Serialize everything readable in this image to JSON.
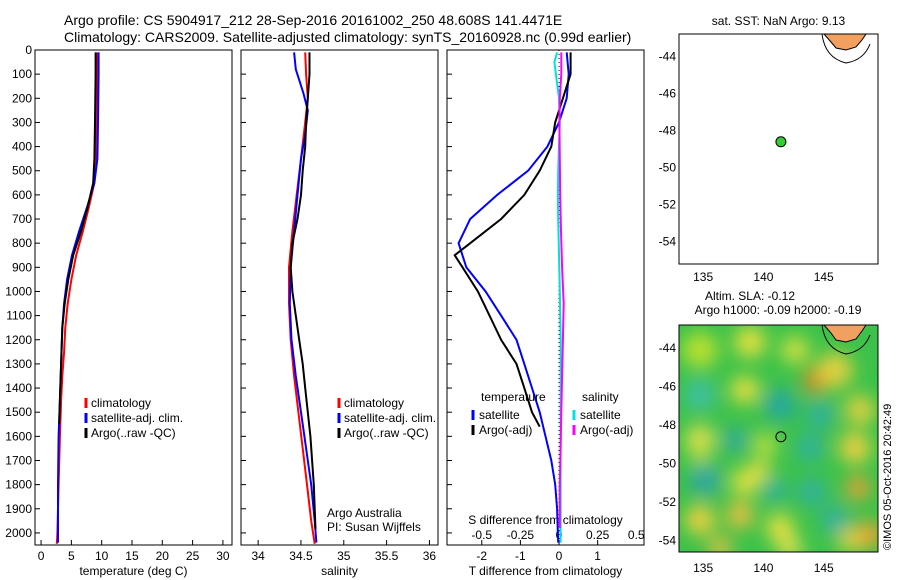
{
  "header": {
    "line1": "Argo profile: CS 5904917_212 28-Sep-2016 20161002_250 48.608S 141.4471E",
    "line2": "Climatology: CARS2009. Satellite-adjusted climatology: synTS_20160928.nc (0.99d earlier)"
  },
  "colors": {
    "climatology": "#ff0000",
    "satellite": "#0000ff",
    "argo": "#000000",
    "sat_salt": "#00e0e0",
    "argo_salt": "#ff00ff",
    "float_marker": "#33cc33"
  },
  "chart_data": [
    {
      "type": "line",
      "id": "temperature",
      "xlabel": "temperature (deg C)",
      "ylim": [
        2050,
        0
      ],
      "xlim": [
        -1,
        31.5
      ],
      "xticks": [
        0,
        5,
        10,
        15,
        20,
        25,
        30
      ],
      "yticks": [
        0,
        100,
        200,
        300,
        400,
        500,
        600,
        700,
        800,
        900,
        1000,
        1100,
        1200,
        1300,
        1400,
        1500,
        1600,
        1700,
        1800,
        1900,
        2000
      ],
      "legend": [
        "climatology",
        "satellite-adj. clim.",
        "Argo(..raw -QC)"
      ],
      "series": [
        {
          "name": "climatology",
          "color": "#ff0000",
          "points": [
            [
              9.3,
              10
            ],
            [
              9.2,
              100
            ],
            [
              9.1,
              300
            ],
            [
              9.0,
              450
            ],
            [
              8.8,
              550
            ],
            [
              7.9,
              650
            ],
            [
              6.9,
              750
            ],
            [
              5.8,
              850
            ],
            [
              5.0,
              950
            ],
            [
              4.4,
              1050
            ],
            [
              4.0,
              1150
            ],
            [
              3.8,
              1250
            ],
            [
              3.5,
              1350
            ],
            [
              3.3,
              1450
            ],
            [
              3.1,
              1600
            ],
            [
              2.9,
              1800
            ],
            [
              2.7,
              2000
            ],
            [
              2.6,
              2045
            ]
          ]
        },
        {
          "name": "satellite-adj. clim.",
          "color": "#0000ff",
          "points": [
            [
              9.5,
              10
            ],
            [
              9.5,
              100
            ],
            [
              9.4,
              300
            ],
            [
              9.3,
              450
            ],
            [
              8.8,
              550
            ],
            [
              7.6,
              650
            ],
            [
              6.3,
              750
            ],
            [
              5.1,
              850
            ],
            [
              4.3,
              950
            ],
            [
              3.8,
              1050
            ],
            [
              3.5,
              1150
            ],
            [
              3.3,
              1300
            ],
            [
              3.1,
              1450
            ],
            [
              2.9,
              1600
            ],
            [
              2.8,
              1800
            ],
            [
              2.8,
              2000
            ],
            [
              2.8,
              2040
            ]
          ]
        },
        {
          "name": "Argo(..raw -QC)",
          "color": "#000000",
          "points": [
            [
              9.0,
              10
            ],
            [
              9.0,
              100
            ],
            [
              8.9,
              300
            ],
            [
              8.8,
              450
            ],
            [
              8.6,
              550
            ],
            [
              7.7,
              650
            ],
            [
              6.6,
              750
            ],
            [
              5.3,
              850
            ],
            [
              4.5,
              950
            ],
            [
              3.9,
              1050
            ],
            [
              3.5,
              1150
            ],
            [
              3.3,
              1300
            ],
            [
              3.1,
              1450
            ],
            [
              3.0,
              1550
            ]
          ]
        }
      ]
    },
    {
      "type": "line",
      "id": "salinity",
      "xlabel": "salinity",
      "ylim": [
        2050,
        0
      ],
      "xlim": [
        33.8,
        36.1
      ],
      "xticks": [
        34,
        34.5,
        35,
        35.5,
        36
      ],
      "legend": [
        "climatology",
        "satellite-adj. clim.",
        "Argo(..raw -QC)"
      ],
      "annotations": [
        "Argo Australia",
        "PI: Susan Wijffels"
      ],
      "series": [
        {
          "name": "climatology",
          "color": "#ff0000",
          "points": [
            [
              34.55,
              10
            ],
            [
              34.56,
              100
            ],
            [
              34.58,
              200
            ],
            [
              34.55,
              300
            ],
            [
              34.5,
              450
            ],
            [
              34.45,
              600
            ],
            [
              34.4,
              750
            ],
            [
              34.36,
              900
            ],
            [
              34.36,
              1050
            ],
            [
              34.38,
              1200
            ],
            [
              34.42,
              1350
            ],
            [
              34.47,
              1500
            ],
            [
              34.52,
              1650
            ],
            [
              34.57,
              1800
            ],
            [
              34.62,
              1950
            ],
            [
              34.66,
              2045
            ]
          ]
        },
        {
          "name": "satellite-adj. clim.",
          "color": "#0000ff",
          "points": [
            [
              34.42,
              10
            ],
            [
              34.44,
              80
            ],
            [
              34.53,
              180
            ],
            [
              34.58,
              250
            ],
            [
              34.55,
              350
            ],
            [
              34.5,
              450
            ],
            [
              34.46,
              600
            ],
            [
              34.42,
              750
            ],
            [
              34.38,
              900
            ],
            [
              34.37,
              1050
            ],
            [
              34.39,
              1200
            ],
            [
              34.44,
              1350
            ],
            [
              34.5,
              1500
            ],
            [
              34.56,
              1650
            ],
            [
              34.62,
              1800
            ],
            [
              34.66,
              1950
            ],
            [
              34.68,
              2040
            ]
          ]
        },
        {
          "name": "Argo(..raw -QC)",
          "color": "#000000",
          "points": [
            [
              34.6,
              10
            ],
            [
              34.6,
              100
            ],
            [
              34.58,
              200
            ],
            [
              34.56,
              300
            ],
            [
              34.55,
              400
            ],
            [
              34.52,
              500
            ],
            [
              34.5,
              600
            ],
            [
              34.46,
              700
            ],
            [
              34.4,
              800
            ],
            [
              34.38,
              900
            ],
            [
              34.4,
              1000
            ],
            [
              34.44,
              1100
            ],
            [
              34.48,
              1200
            ],
            [
              34.52,
              1300
            ],
            [
              34.55,
              1400
            ],
            [
              34.58,
              1500
            ],
            [
              34.61,
              1600
            ],
            [
              34.63,
              1700
            ],
            [
              34.65,
              1800
            ],
            [
              34.66,
              1900
            ],
            [
              34.67,
              1985
            ]
          ]
        }
      ]
    },
    {
      "type": "line",
      "id": "differences",
      "xlabel": "T difference from climatology",
      "xlabel_top": "S difference from climatology",
      "ylim": [
        2050,
        0
      ],
      "xlim": [
        -2.9,
        2.2
      ],
      "xticks": [
        -2,
        -1,
        0,
        1
      ],
      "xticks_s": [
        "-0.5",
        "-0.25",
        "0",
        "0.25",
        "0.5"
      ],
      "legend_t_title": "temperature",
      "legend_s_title": "salinity",
      "legend": [
        "satellite",
        "Argo(-adj)",
        "satellite",
        "Argo(-adj)"
      ],
      "series": [
        {
          "name": "T satellite",
          "color": "#0000ff",
          "points": [
            [
              0.2,
              10
            ],
            [
              0.25,
              100
            ],
            [
              0.2,
              200
            ],
            [
              0.0,
              300
            ],
            [
              -0.3,
              400
            ],
            [
              -0.8,
              500
            ],
            [
              -1.6,
              600
            ],
            [
              -2.3,
              700
            ],
            [
              -2.6,
              800
            ],
            [
              -2.4,
              900
            ],
            [
              -1.9,
              1000
            ],
            [
              -1.5,
              1100
            ],
            [
              -1.1,
              1200
            ],
            [
              -0.9,
              1300
            ],
            [
              -0.7,
              1400
            ],
            [
              -0.5,
              1500
            ],
            [
              -0.35,
              1600
            ],
            [
              -0.2,
              1700
            ],
            [
              -0.1,
              1800
            ],
            [
              -0.05,
              1900
            ],
            [
              -0.02,
              2040
            ]
          ]
        },
        {
          "name": "T Argo(-adj)",
          "color": "#000000",
          "points": [
            [
              0.3,
              10
            ],
            [
              0.3,
              100
            ],
            [
              0.1,
              200
            ],
            [
              -0.1,
              300
            ],
            [
              -0.2,
              400
            ],
            [
              -0.5,
              500
            ],
            [
              -0.9,
              600
            ],
            [
              -1.5,
              700
            ],
            [
              -2.3,
              800
            ],
            [
              -2.7,
              850
            ],
            [
              -2.5,
              900
            ],
            [
              -2.1,
              1000
            ],
            [
              -1.8,
              1100
            ],
            [
              -1.5,
              1200
            ],
            [
              -1.1,
              1300
            ],
            [
              -0.9,
              1400
            ],
            [
              -0.7,
              1500
            ],
            [
              -0.5,
              1560
            ]
          ]
        },
        {
          "name": "S satellite",
          "color": "#00e0e0",
          "points": [
            [
              -0.05,
              10
            ],
            [
              -0.12,
              50
            ],
            [
              -0.08,
              100
            ],
            [
              0.0,
              200
            ],
            [
              0.02,
              300
            ],
            [
              0.0,
              400
            ],
            [
              -0.02,
              500
            ],
            [
              -0.03,
              600
            ],
            [
              -0.02,
              700
            ],
            [
              0.0,
              850
            ],
            [
              0.02,
              1000
            ],
            [
              0.04,
              1200
            ],
            [
              0.04,
              1400
            ],
            [
              0.04,
              1600
            ],
            [
              0.04,
              1800
            ],
            [
              0.04,
              2000
            ],
            [
              0.04,
              2040
            ]
          ]
        },
        {
          "name": "S Argo(-adj)",
          "color": "#ff00ff",
          "points": [
            [
              0.06,
              10
            ],
            [
              0.06,
              100
            ],
            [
              0.02,
              200
            ],
            [
              0.01,
              300
            ],
            [
              0.02,
              450
            ],
            [
              0.03,
              600
            ],
            [
              0.05,
              750
            ],
            [
              0.08,
              900
            ],
            [
              0.12,
              1050
            ],
            [
              0.1,
              1200
            ],
            [
              0.08,
              1350
            ],
            [
              0.06,
              1500
            ],
            [
              0.04,
              1650
            ],
            [
              0.02,
              1800
            ],
            [
              0.02,
              1980
            ]
          ]
        }
      ]
    },
    {
      "type": "scatter",
      "id": "sst_map",
      "title": "sat. SST: NaN Argo: 9.13",
      "xlim": [
        133,
        149.5
      ],
      "ylim": [
        -55.2,
        -42.8
      ],
      "xticks": [
        135,
        140,
        145
      ],
      "yticks": [
        -44,
        -46,
        -48,
        -50,
        -52,
        -54
      ],
      "points": [
        [
          141.45,
          -48.61
        ]
      ]
    },
    {
      "type": "heatmap",
      "id": "sla_map",
      "title_line1": "Altim. SLA: -0.12",
      "title_line2": "Argo h1000: -0.09 h2000: -0.19",
      "xlim": [
        133,
        149.5
      ],
      "ylim": [
        -54.6,
        -42.8
      ],
      "xticks": [
        135,
        140,
        145
      ],
      "yticks": [
        -44,
        -46,
        -48,
        -50,
        -52,
        -54
      ],
      "points": [
        [
          141.45,
          -48.61
        ]
      ]
    }
  ],
  "footer": {
    "stamp": "©IMOS 05-Oct-2016 20:42:49"
  }
}
